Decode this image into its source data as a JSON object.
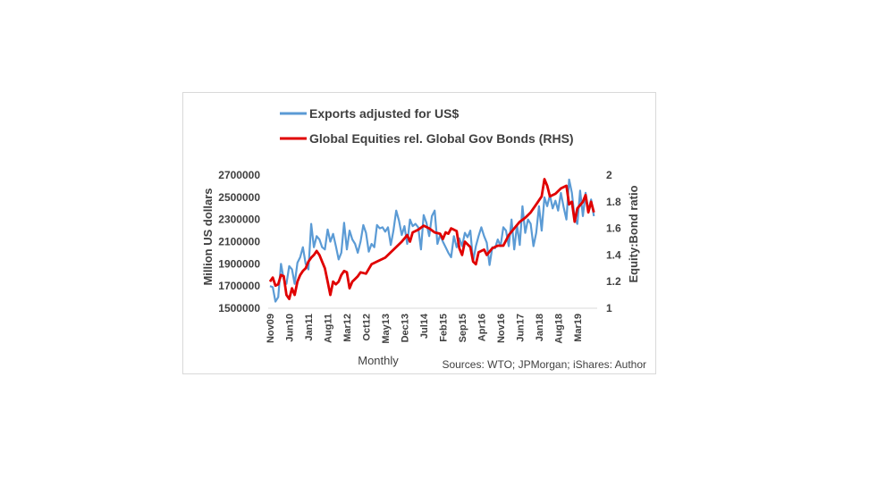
{
  "chart_data": {
    "type": "line",
    "legend": {
      "position": "top",
      "entries": [
        "Exports adjusted for US$",
        "Global Equities rel. Global Gov Bonds (RHS)"
      ]
    },
    "xlabel": "Monthly",
    "ylabel": "Million US dollars",
    "y2label": "Equity:Bond ratio",
    "source": "Sources: WTO; JPMorgan; iShares: Author",
    "x_start": "Nov09",
    "x_ticks": [
      "Nov09",
      "Jun10",
      "Jan11",
      "Aug11",
      "Mar12",
      "Oct12",
      "May13",
      "Dec13",
      "Jul14",
      "Feb15",
      "Sep15",
      "Apr16",
      "Nov16",
      "Jun17",
      "Jan18",
      "Aug18",
      "Mar19"
    ],
    "x_tick_step_months": 7,
    "ylim": [
      1500000,
      2700000
    ],
    "y_ticks": [
      "1500000",
      "1700000",
      "1900000",
      "2100000",
      "2300000",
      "2500000",
      "2700000"
    ],
    "y2lim": [
      1,
      2
    ],
    "y2_ticks": [
      "1",
      "1.2",
      "1.4",
      "1.6",
      "1.8",
      "2"
    ],
    "colors": {
      "exports": "#5b9bd5",
      "equity": "#e00000"
    },
    "series": [
      {
        "name": "Exports adjusted for US$",
        "axis": "left",
        "monthly_values": [
          1700000,
          1690000,
          1560000,
          1600000,
          1900000,
          1760000,
          1720000,
          1880000,
          1850000,
          1720000,
          1910000,
          1960000,
          2050000,
          1900000,
          1850000,
          2260000,
          2050000,
          2150000,
          2120000,
          2050000,
          2030000,
          2210000,
          2100000,
          2170000,
          2060000,
          1940000,
          2000000,
          2270000,
          2030000,
          2200000,
          2120000,
          2080000,
          2000000,
          2100000,
          2250000,
          2180000,
          2010000,
          2080000,
          2050000,
          2250000,
          2220000,
          2230000,
          2190000,
          2230000,
          2070000,
          2200000,
          2380000,
          2290000,
          2160000,
          2240000,
          2080000,
          2300000,
          2240000,
          2260000,
          2230000,
          2030000,
          2340000,
          2270000,
          2150000,
          2330000,
          2380000,
          2080000,
          2160000,
          2100000,
          2050000,
          2000000,
          1960000,
          2150000,
          2050000,
          2130000,
          2060000,
          2180000,
          2140000,
          2200000,
          1920000,
          2060000,
          2150000,
          2230000,
          2150000,
          2090000,
          1890000,
          2050000,
          2040000,
          2120000,
          2060000,
          2230000,
          2200000,
          2060000,
          2300000,
          2030000,
          2250000,
          2070000,
          2420000,
          2180000,
          2300000,
          2260000,
          2060000,
          2180000,
          2420000,
          2200000,
          2500000,
          2420000,
          2520000,
          2400000,
          2470000,
          2380000,
          2540000,
          2410000,
          2300000,
          2660000,
          2540000,
          2310000,
          2260000,
          2560000,
          2330000,
          2540000,
          2380000,
          2480000,
          2330000
        ]
      },
      {
        "name": "Global Equities rel. Global Gov Bonds (RHS)",
        "axis": "right",
        "points_month_index_value": [
          [
            0,
            1.2
          ],
          [
            1,
            1.23
          ],
          [
            2,
            1.17
          ],
          [
            3,
            1.18
          ],
          [
            4,
            1.25
          ],
          [
            5,
            1.24
          ],
          [
            6,
            1.1
          ],
          [
            7,
            1.07
          ],
          [
            8,
            1.15
          ],
          [
            9,
            1.1
          ],
          [
            10,
            1.2
          ],
          [
            11,
            1.25
          ],
          [
            12,
            1.28
          ],
          [
            13,
            1.3
          ],
          [
            14,
            1.35
          ],
          [
            15,
            1.38
          ],
          [
            16,
            1.4
          ],
          [
            17,
            1.43
          ],
          [
            18,
            1.4
          ],
          [
            19,
            1.35
          ],
          [
            20,
            1.3
          ],
          [
            21,
            1.2
          ],
          [
            22,
            1.1
          ],
          [
            23,
            1.2
          ],
          [
            24,
            1.18
          ],
          [
            25,
            1.2
          ],
          [
            26,
            1.25
          ],
          [
            27,
            1.28
          ],
          [
            28,
            1.27
          ],
          [
            29,
            1.15
          ],
          [
            30,
            1.2
          ],
          [
            31,
            1.22
          ],
          [
            32,
            1.24
          ],
          [
            33,
            1.27
          ],
          [
            35,
            1.26
          ],
          [
            37,
            1.33
          ],
          [
            39,
            1.35
          ],
          [
            42,
            1.38
          ],
          [
            44,
            1.42
          ],
          [
            46,
            1.46
          ],
          [
            48,
            1.5
          ],
          [
            50,
            1.55
          ],
          [
            51,
            1.5
          ],
          [
            52,
            1.57
          ],
          [
            54,
            1.59
          ],
          [
            56,
            1.62
          ],
          [
            58,
            1.6
          ],
          [
            60,
            1.57
          ],
          [
            62,
            1.56
          ],
          [
            63,
            1.52
          ],
          [
            64,
            1.57
          ],
          [
            65,
            1.56
          ],
          [
            66,
            1.6
          ],
          [
            68,
            1.58
          ],
          [
            69,
            1.45
          ],
          [
            70,
            1.4
          ],
          [
            71,
            1.5
          ],
          [
            72,
            1.48
          ],
          [
            73,
            1.46
          ],
          [
            74,
            1.35
          ],
          [
            75,
            1.33
          ],
          [
            76,
            1.42
          ],
          [
            78,
            1.44
          ],
          [
            79,
            1.4
          ],
          [
            81,
            1.45
          ],
          [
            83,
            1.47
          ],
          [
            85,
            1.47
          ],
          [
            87,
            1.55
          ],
          [
            89,
            1.6
          ],
          [
            91,
            1.65
          ],
          [
            93,
            1.68
          ],
          [
            95,
            1.72
          ],
          [
            97,
            1.78
          ],
          [
            99,
            1.84
          ],
          [
            100,
            1.97
          ],
          [
            101,
            1.92
          ],
          [
            102,
            1.84
          ],
          [
            104,
            1.86
          ],
          [
            106,
            1.9
          ],
          [
            108,
            1.92
          ],
          [
            109,
            1.78
          ],
          [
            110,
            1.8
          ],
          [
            111,
            1.65
          ],
          [
            112,
            1.75
          ],
          [
            114,
            1.8
          ],
          [
            115,
            1.85
          ],
          [
            116,
            1.72
          ],
          [
            117,
            1.8
          ],
          [
            118,
            1.72
          ]
        ]
      }
    ]
  }
}
